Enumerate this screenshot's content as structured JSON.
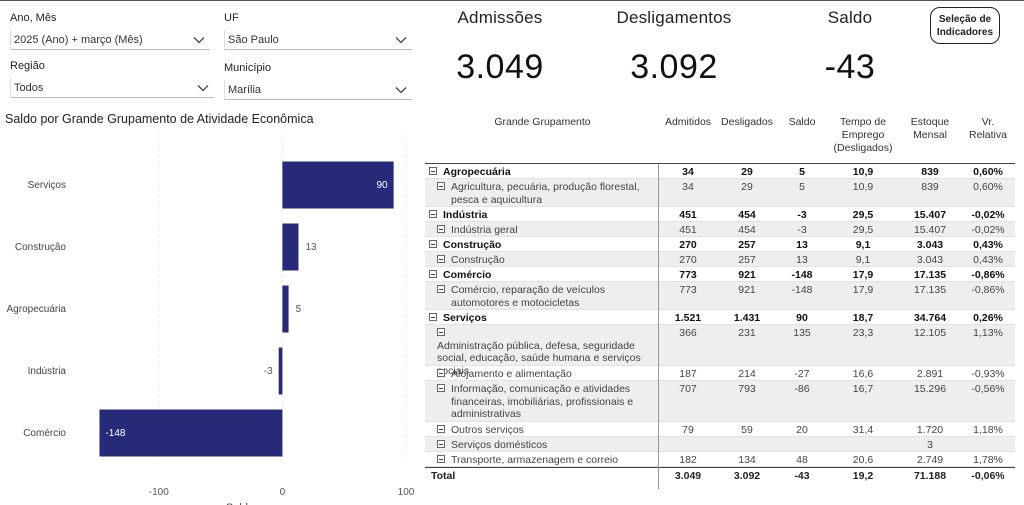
{
  "filters": {
    "year_month": {
      "label": "Ano, Mês",
      "value": "2025 (Ano) + março (Mês)"
    },
    "uf": {
      "label": "UF",
      "value": "São Paulo"
    },
    "region": {
      "label": "Região",
      "value": "Todos"
    },
    "municipality": {
      "label": "Município",
      "value": "Marília"
    }
  },
  "kpis": {
    "admissions": {
      "label": "Admissões",
      "value": "3.049"
    },
    "dismissals": {
      "label": "Desligamentos",
      "value": "3.092"
    },
    "balance": {
      "label": "Saldo",
      "value": "-43"
    }
  },
  "indicator_button": "Seleção de\nIndicadores",
  "chart": {
    "title": "Saldo por Grande Grupamento de Atividade Econômica",
    "bar_color": "#262a78",
    "axis_label_partial": "Saldo"
  },
  "chart_data": {
    "type": "bar",
    "orientation": "horizontal",
    "categories": [
      "Serviços",
      "Construção",
      "Agropecuária",
      "Indústria",
      "Comércio"
    ],
    "values": [
      90,
      13,
      5,
      -3,
      -148
    ],
    "value_labels": [
      "90",
      "13",
      "5",
      "-3",
      "-148"
    ],
    "xlim": [
      -150,
      100
    ],
    "xticks": [
      -100,
      0,
      100
    ],
    "xtick_labels": [
      "-100",
      "0",
      "100"
    ]
  },
  "table": {
    "headers": {
      "group": "Grande Grupamento",
      "admitted": "Admitidos",
      "dismissed": "Desligados",
      "balance": "Saldo",
      "tenure": "Tempo de\nEmprego\n(Desligados)",
      "stock": "Estoque\nMensal",
      "rel": "Vr.\nRelativa"
    },
    "rows": [
      {
        "type": "grp",
        "name": "Agropecuária",
        "adm": "34",
        "des": "29",
        "sal": "5",
        "tem": "10,9",
        "est": "839",
        "vr": "0,60%"
      },
      {
        "type": "sub",
        "name": "Agricultura, pecuária, produção florestal,\npesca e aquicultura",
        "adm": "34",
        "des": "29",
        "sal": "5",
        "tem": "10,9",
        "est": "839",
        "vr": "0,60%"
      },
      {
        "type": "grp",
        "name": "Indústria",
        "adm": "451",
        "des": "454",
        "sal": "-3",
        "tem": "29,5",
        "est": "15.407",
        "vr": "-0,02%"
      },
      {
        "type": "sub",
        "name": "Indústria geral",
        "adm": "451",
        "des": "454",
        "sal": "-3",
        "tem": "29,5",
        "est": "15.407",
        "vr": "-0,02%"
      },
      {
        "type": "grp",
        "name": "Construção",
        "adm": "270",
        "des": "257",
        "sal": "13",
        "tem": "9,1",
        "est": "3.043",
        "vr": "0,43%"
      },
      {
        "type": "sub",
        "name": "Construção",
        "adm": "270",
        "des": "257",
        "sal": "13",
        "tem": "9,1",
        "est": "3.043",
        "vr": "0,43%"
      },
      {
        "type": "grp",
        "name": "Comércio",
        "adm": "773",
        "des": "921",
        "sal": "-148",
        "tem": "17,9",
        "est": "17.135",
        "vr": "-0,86%"
      },
      {
        "type": "sub",
        "name": "Comércio, reparação de veículos\nautomotores e motocicletas",
        "adm": "773",
        "des": "921",
        "sal": "-148",
        "tem": "17,9",
        "est": "17.135",
        "vr": "-0,86%"
      },
      {
        "type": "grp",
        "name": "Serviços",
        "adm": "1.521",
        "des": "1.431",
        "sal": "90",
        "tem": "18,7",
        "est": "34.764",
        "vr": "0,26%"
      },
      {
        "type": "sub",
        "name": "Administração pública, defesa, seguridade\nsocial, educação, saúde humana e serviços\nsociais",
        "adm": "366",
        "des": "231",
        "sal": "135",
        "tem": "23,3",
        "est": "12.105",
        "vr": "1,13%"
      },
      {
        "type": "sub",
        "name": "Alojamento e alimentação",
        "adm": "187",
        "des": "214",
        "sal": "-27",
        "tem": "16,6",
        "est": "2.891",
        "vr": "-0,93%"
      },
      {
        "type": "sub",
        "name": "Informação, comunicação e atividades\nfinanceiras, imobiliárias, profissionais e\nadministrativas",
        "adm": "707",
        "des": "793",
        "sal": "-86",
        "tem": "16,7",
        "est": "15.296",
        "vr": "-0,56%"
      },
      {
        "type": "sub",
        "name": "Outros serviços",
        "adm": "79",
        "des": "59",
        "sal": "20",
        "tem": "31,4",
        "est": "1.720",
        "vr": "1,18%"
      },
      {
        "type": "sub",
        "name": "Serviços domésticos",
        "adm": "",
        "des": "",
        "sal": "",
        "tem": "",
        "est": "3",
        "vr": ""
      },
      {
        "type": "sub",
        "name": "Transporte, armazenagem e correio",
        "adm": "182",
        "des": "134",
        "sal": "48",
        "tem": "20,6",
        "est": "2.749",
        "vr": "1,78%"
      }
    ],
    "total": {
      "name": "Total",
      "adm": "3.049",
      "des": "3.092",
      "sal": "-43",
      "tem": "19,2",
      "est": "71.188",
      "vr": "-0,06%"
    }
  }
}
